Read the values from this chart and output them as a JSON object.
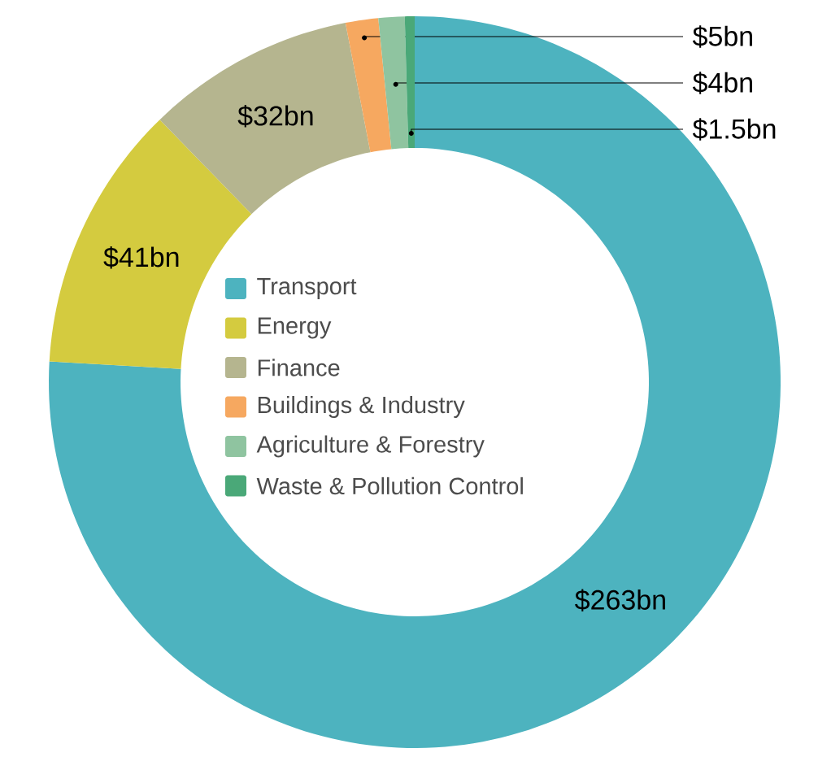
{
  "chart_data": {
    "type": "donut",
    "categories": [
      "Transport",
      "Energy",
      "Finance",
      "Buildings & Industry",
      "Agriculture & Forestry",
      "Waste & Pollution Control"
    ],
    "values": [
      263,
      41,
      32,
      5,
      4,
      1.5
    ],
    "colors": [
      "#4db3bf",
      "#d4cb3f",
      "#b5b58f",
      "#f6a860",
      "#8fc4a0",
      "#4aa878"
    ],
    "value_labels": [
      "$263bn",
      "$41bn",
      "$32bn",
      "$5bn",
      "$4bn",
      "$1.5bn"
    ],
    "legend": "center"
  }
}
